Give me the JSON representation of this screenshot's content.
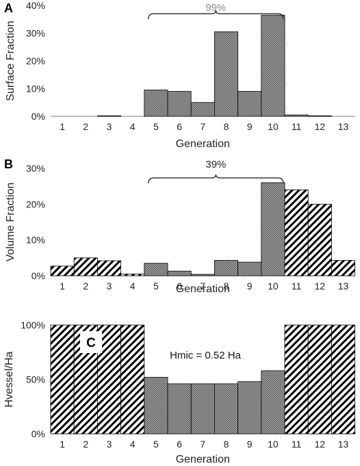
{
  "figure": {
    "colors": {
      "solid_bar": "#6f6f6f",
      "hatched_bar": "#ffffff",
      "axis": "#555555",
      "bracket": "#111111"
    },
    "hatch_styles": {
      "solid": "dense checkered dark gray",
      "hatched": "diagonal black stripes on white"
    }
  },
  "chart_data": [
    {
      "panel_label": "A",
      "type": "bar",
      "categories": [
        "1",
        "2",
        "3",
        "4",
        "5",
        "6",
        "7",
        "8",
        "9",
        "10",
        "11",
        "12",
        "13"
      ],
      "values": [
        0,
        0,
        0.2,
        0,
        9.5,
        9,
        5,
        30.5,
        9,
        36.5,
        0.5,
        0.2,
        0
      ],
      "bar_styles": [
        "solid",
        "solid",
        "solid",
        "solid",
        "solid",
        "solid",
        "solid",
        "solid",
        "solid",
        "solid",
        "solid",
        "solid",
        "solid"
      ],
      "xlabel": "Generation",
      "ylabel": "Surface Fraction",
      "ylim": [
        0,
        40
      ],
      "yticks": [
        "0%",
        "10%",
        "20%",
        "30%",
        "40%"
      ],
      "grid": false,
      "annotation": {
        "text": "99%",
        "from_category": "5",
        "to_category": "10",
        "color": "#8a8a8a"
      }
    },
    {
      "panel_label": "B",
      "type": "bar",
      "categories": [
        "1",
        "2",
        "3",
        "4",
        "5",
        "6",
        "7",
        "8",
        "9",
        "10",
        "11",
        "12",
        "13"
      ],
      "values": [
        2.7,
        5,
        4.2,
        0.5,
        3.5,
        1.3,
        0.4,
        4.3,
        3.8,
        26,
        24,
        20,
        4.3
      ],
      "bar_styles": [
        "hatched",
        "hatched",
        "hatched",
        "hatched",
        "solid",
        "solid",
        "solid",
        "solid",
        "solid",
        "solid",
        "hatched",
        "hatched",
        "hatched"
      ],
      "xlabel": "Generation",
      "ylabel": "Volume Fraction",
      "ylim": [
        0,
        30
      ],
      "yticks": [
        "0%",
        "10%",
        "20%",
        "30%"
      ],
      "grid": false,
      "annotation": {
        "text": "39%",
        "from_category": "5",
        "to_category": "10",
        "color": "#222222"
      }
    },
    {
      "panel_label": "C",
      "type": "bar",
      "categories": [
        "1",
        "2",
        "3",
        "4",
        "5",
        "6",
        "7",
        "8",
        "9",
        "10",
        "11",
        "12",
        "13"
      ],
      "values": [
        100,
        100,
        100,
        100,
        52,
        46,
        46,
        46,
        48,
        58,
        100,
        100,
        100
      ],
      "bar_styles": [
        "hatched",
        "hatched",
        "hatched",
        "hatched",
        "solid",
        "solid",
        "solid",
        "solid",
        "solid",
        "solid",
        "hatched",
        "hatched",
        "hatched"
      ],
      "xlabel": "Generation",
      "ylabel": "Hvessel/Ha",
      "ylim": [
        0,
        100
      ],
      "yticks": [
        "0%",
        "50%",
        "100%"
      ],
      "grid": false,
      "annotation": {
        "text": "Hmic = 0.52 Ha"
      }
    }
  ]
}
